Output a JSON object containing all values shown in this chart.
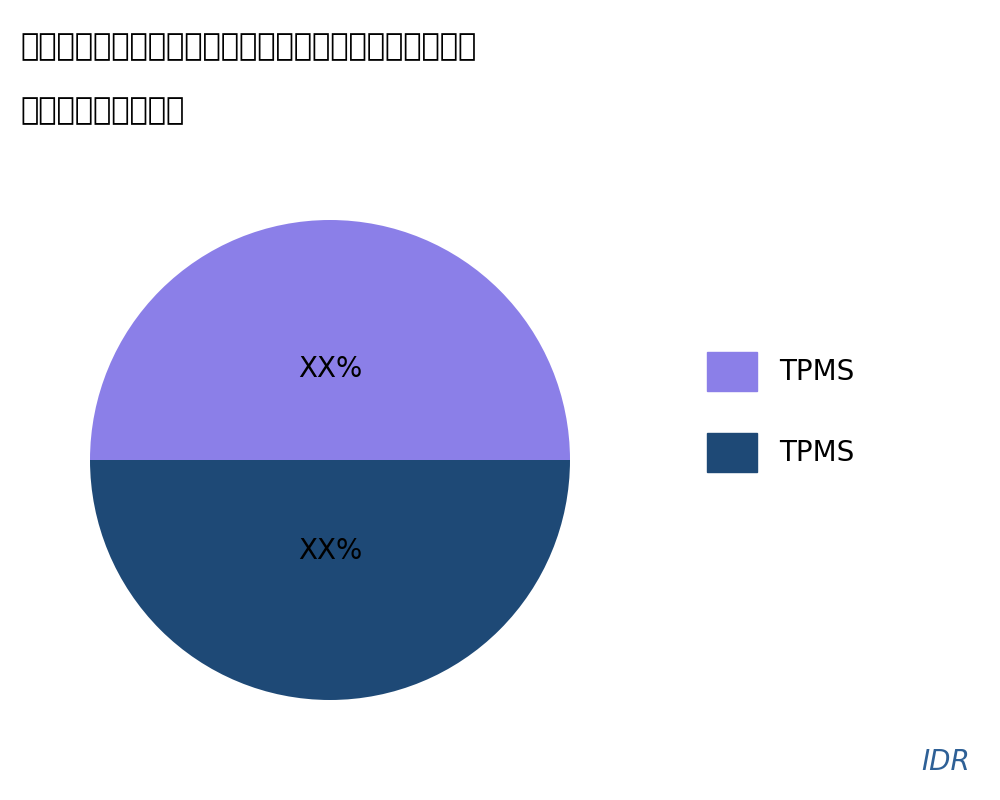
{
  "title_line1": "商業航空機のタイヤの圧力とブレーキ温度監視システム",
  "title_line2": "タイプ別の市場分析",
  "slices": [
    50,
    50
  ],
  "labels": [
    "XX%",
    "XX%"
  ],
  "colors": [
    "#1E4976",
    "#8B7FE8"
  ],
  "legend_labels": [
    "TPMS",
    "TPMS"
  ],
  "legend_colors": [
    "#8B7FE8",
    "#1E4976"
  ],
  "watermark": "IDR",
  "watermark_color": "#2E6096",
  "background_color": "#ffffff",
  "startangle": 180
}
